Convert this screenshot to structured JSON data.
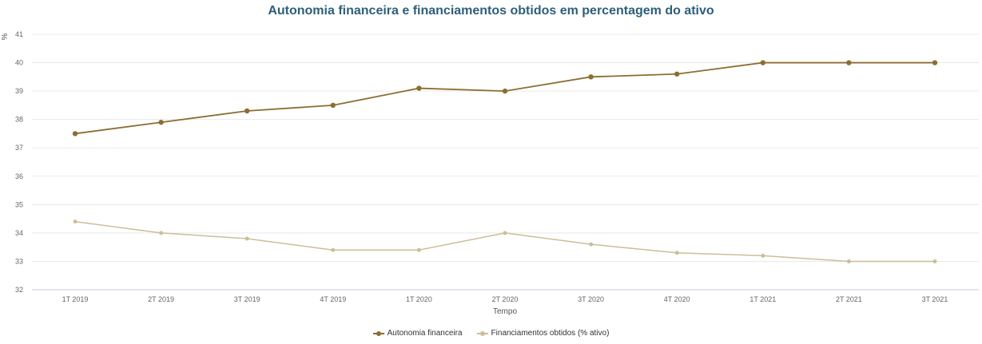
{
  "chart_data": {
    "type": "line",
    "title": "Autonomia financeira e financiamentos obtidos em percentagem do ativo",
    "xlabel": "Tempo",
    "ylabel": "%",
    "ylim": [
      32,
      41
    ],
    "yticks": [
      32,
      33,
      34,
      35,
      36,
      37,
      38,
      39,
      40,
      41
    ],
    "grid": true,
    "legend_position": "bottom-center",
    "categories": [
      "1T 2019",
      "2T 2019",
      "3T 2019",
      "4T 2019",
      "1T 2020",
      "2T 2020",
      "3T 2020",
      "4T 2020",
      "1T 2021",
      "2T 2021",
      "3T 2021"
    ],
    "series": [
      {
        "name": "Autonomia financeira",
        "color": "#8c6d32",
        "values": [
          37.5,
          37.9,
          38.3,
          38.5,
          39.1,
          39.0,
          39.5,
          39.6,
          40.0,
          40.0,
          40.0
        ]
      },
      {
        "name": "Financiamentos obtidos (% ativo)",
        "color": "#cdbd9a",
        "values": [
          34.4,
          34.0,
          33.8,
          33.4,
          33.4,
          34.0,
          33.6,
          33.3,
          33.2,
          33.0,
          33.0
        ]
      }
    ]
  }
}
